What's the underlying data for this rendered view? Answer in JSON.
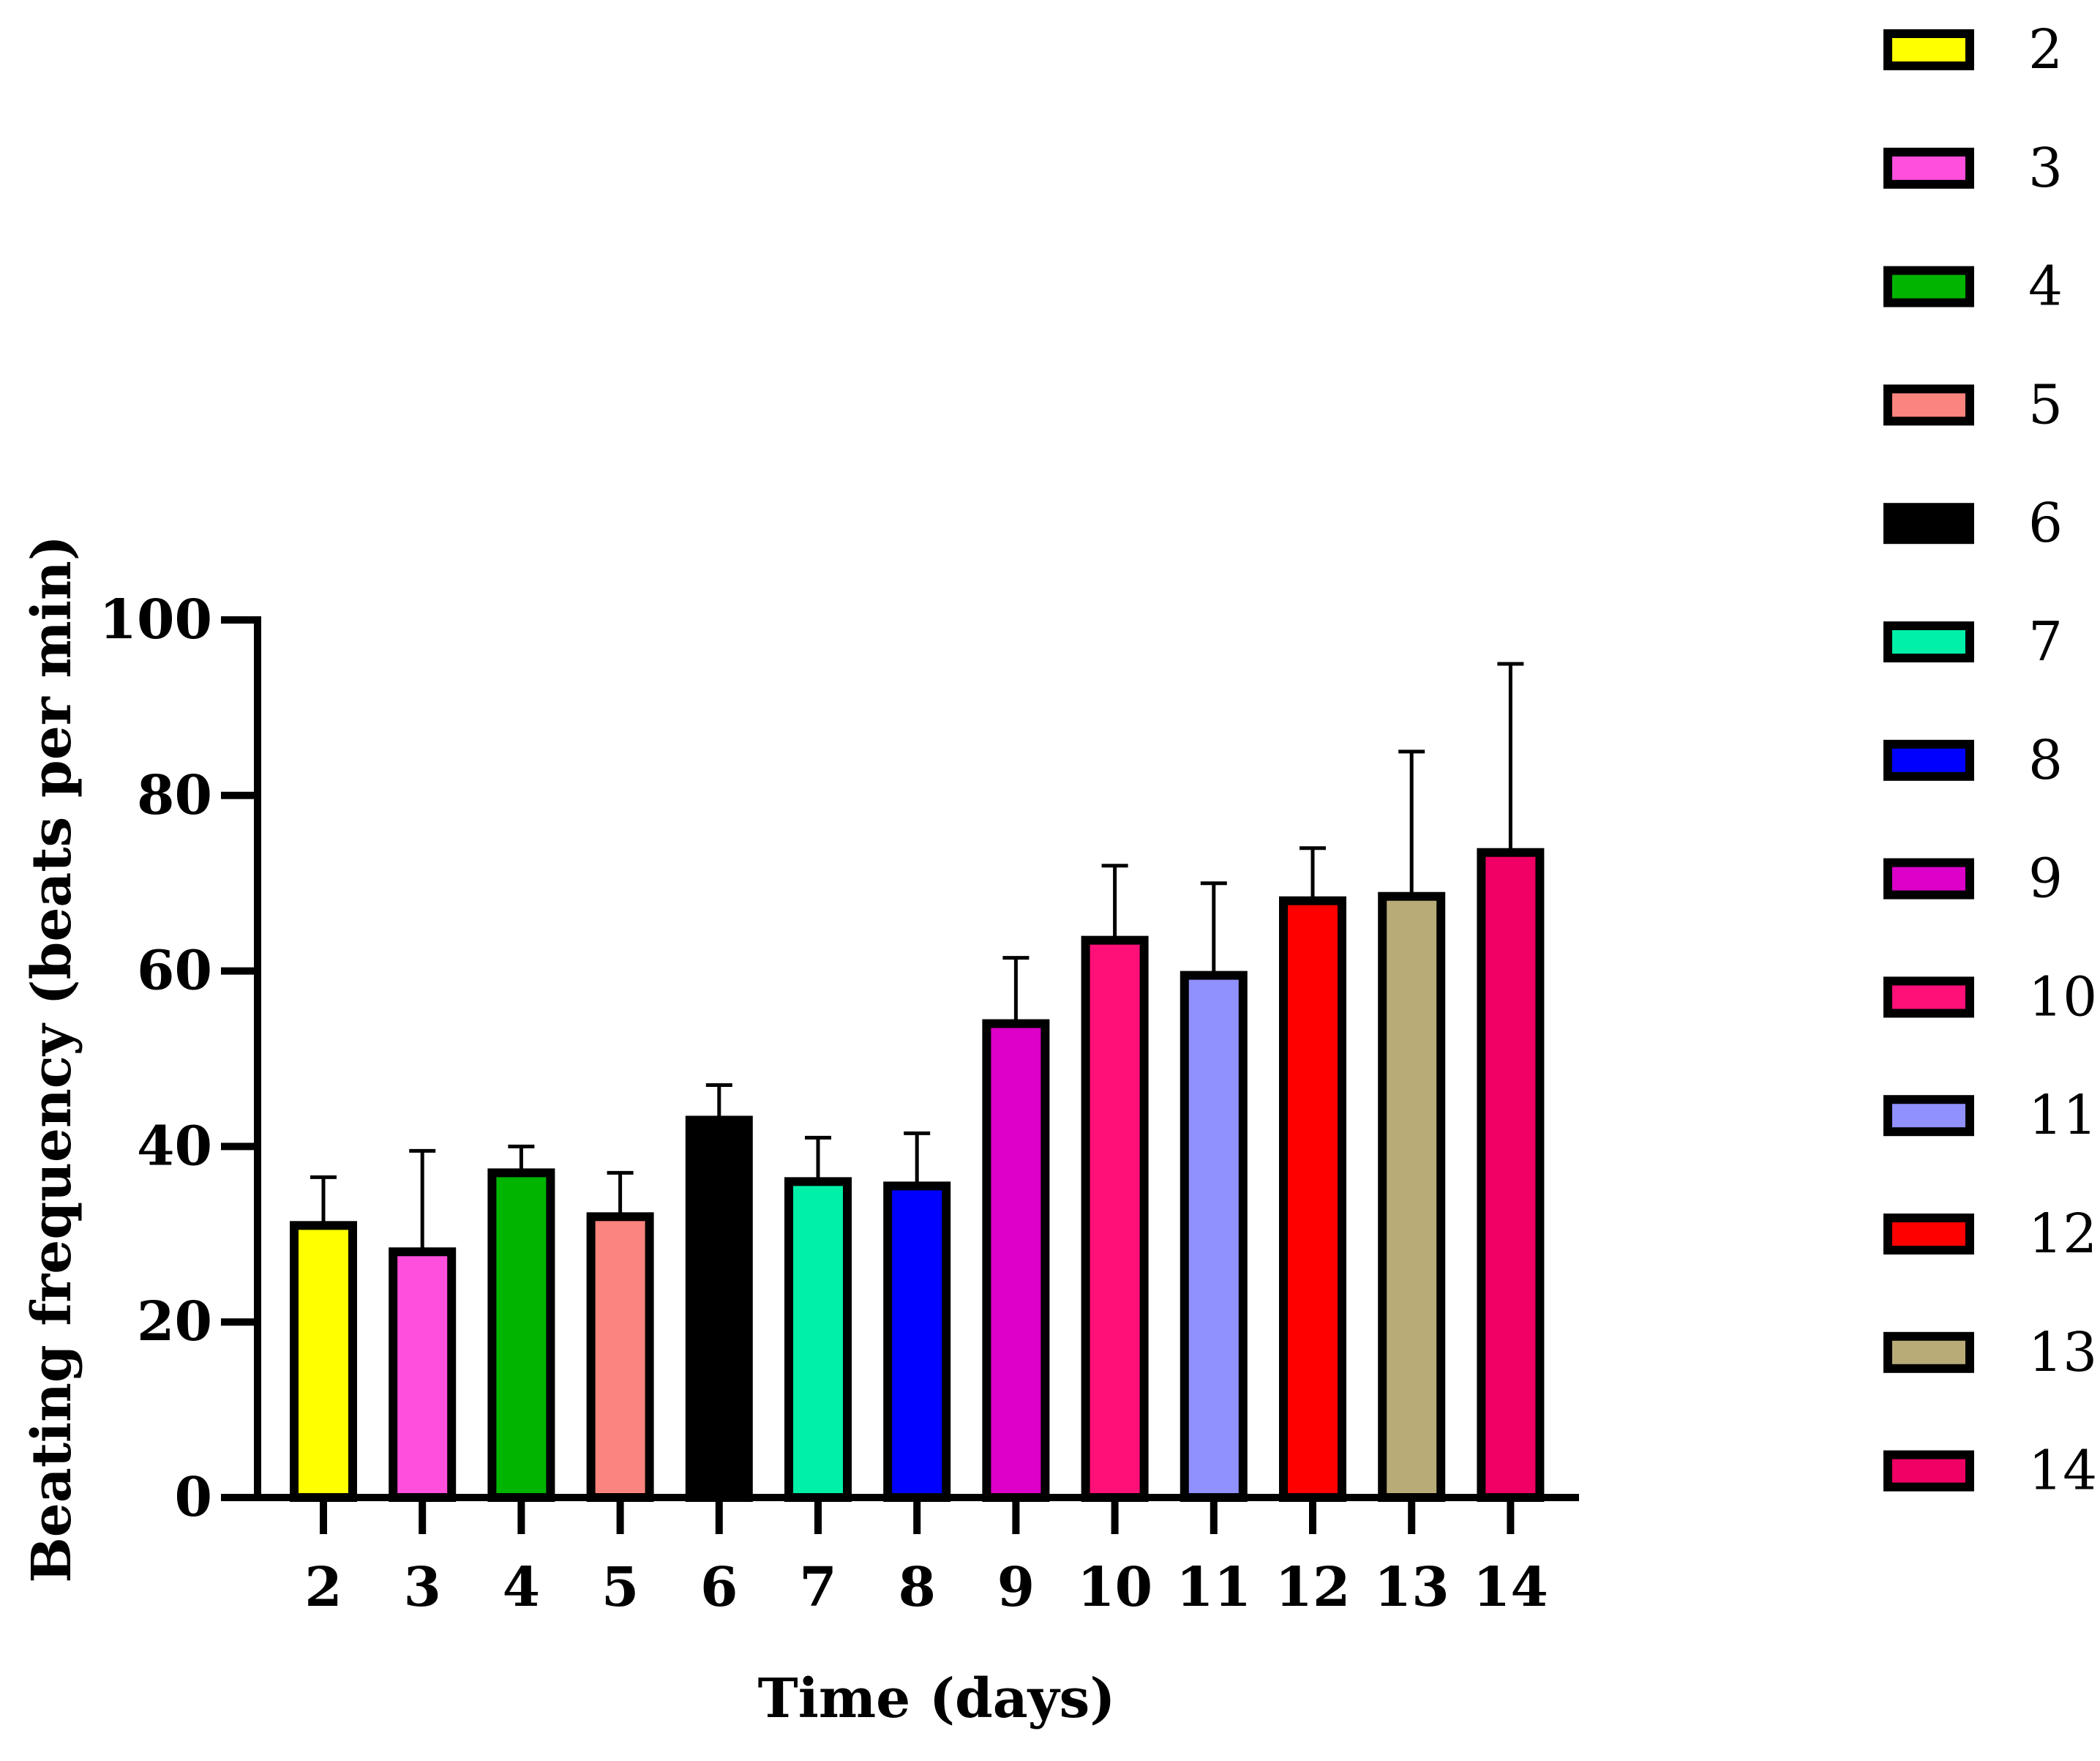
{
  "chart_data": {
    "type": "bar",
    "title": "",
    "xlabel": "Time (days)",
    "ylabel": "Beating frequency (beats per min)",
    "ylim": [
      0,
      100
    ],
    "yticks": [
      0,
      20,
      40,
      60,
      80,
      100
    ],
    "grid": false,
    "legend_position": "right",
    "categories": [
      "2",
      "3",
      "4",
      "5",
      "6",
      "7",
      "8",
      "9",
      "10",
      "11",
      "12",
      "13",
      "14"
    ],
    "values": [
      31,
      28,
      37,
      32,
      43,
      36,
      35.5,
      54,
      63.5,
      59.5,
      68,
      68.5,
      73.5
    ],
    "error_upper": [
      36.5,
      39.5,
      40,
      37,
      47,
      41,
      41.5,
      61.5,
      72,
      70,
      74,
      85,
      95
    ],
    "colors": [
      "#ffff00",
      "#ff4fdc",
      "#00b400",
      "#fb857e",
      "#000000",
      "#00f0a8",
      "#0000ff",
      "#dc00c8",
      "#ff0f78",
      "#9090ff",
      "#ff0000",
      "#b8ab78",
      "#f00064"
    ],
    "legend": [
      "2",
      "3",
      "4",
      "5",
      "6",
      "7",
      "8",
      "9",
      "10",
      "11",
      "12",
      "13",
      "14"
    ]
  }
}
